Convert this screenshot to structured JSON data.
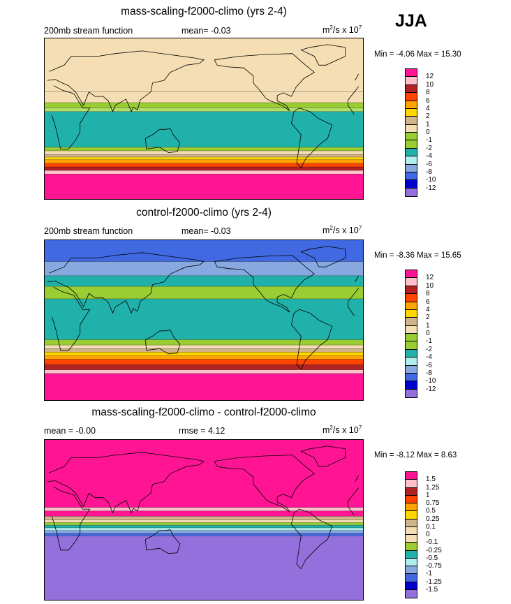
{
  "season": "JJA",
  "chart_data": [
    {
      "type": "heatmap",
      "title": "mass-scaling-f2000-climo (yrs 2-4)",
      "left_label": "200mb stream function",
      "center_label": "mean=  -0.03",
      "units_base": "m",
      "units_sup": "2",
      "units_mid": "/s x 10",
      "units_exp": "7",
      "minmax": "Min =  -4.06 Max =  15.30",
      "colorbar_levels": [
        "12",
        "10",
        "8",
        "6",
        "4",
        "2",
        "1",
        "0",
        "-1",
        "-2",
        "-4",
        "-6",
        "-8",
        "-10",
        "-12"
      ],
      "colorbar_colors": [
        "#ff1493",
        "#ffc0cb",
        "#b22222",
        "#ff4500",
        "#ffa500",
        "#ffd700",
        "#d2b48c",
        "#f5deb3",
        "#9acd32",
        "#9acd32",
        "#20b2aa",
        "#afeeee",
        "#87a9e0",
        "#4169e1",
        "#0000cd",
        "#9370db"
      ],
      "bands": [
        {
          "lat_top": 90,
          "lat_bot": 30,
          "value": 1,
          "color": "#f5deb3"
        },
        {
          "lat_top": 30,
          "lat_bot": 18,
          "value": 0,
          "color": "#f5deb3"
        },
        {
          "lat_top": 18,
          "lat_bot": 12,
          "value": -1,
          "color": "#9acd32"
        },
        {
          "lat_top": 12,
          "lat_bot": 8,
          "value": -2,
          "color": "#afe06a"
        },
        {
          "lat_top": 8,
          "lat_bot": -32,
          "value": -4,
          "color": "#20b2aa"
        },
        {
          "lat_top": -32,
          "lat_bot": -36,
          "value": -2,
          "color": "#9acd32"
        },
        {
          "lat_top": -36,
          "lat_bot": -40,
          "value": 0,
          "color": "#f5deb3"
        },
        {
          "lat_top": -40,
          "lat_bot": -43,
          "value": 2,
          "color": "#d2b48c"
        },
        {
          "lat_top": -43,
          "lat_bot": -46,
          "value": 4,
          "color": "#ffd700"
        },
        {
          "lat_top": -46,
          "lat_bot": -50,
          "value": 6,
          "color": "#ffa500"
        },
        {
          "lat_top": -50,
          "lat_bot": -54,
          "value": 8,
          "color": "#ff4500"
        },
        {
          "lat_top": -54,
          "lat_bot": -58,
          "value": 10,
          "color": "#b22222"
        },
        {
          "lat_top": -58,
          "lat_bot": -62,
          "value": 12,
          "color": "#ffc0cb"
        },
        {
          "lat_top": -62,
          "lat_bot": -90,
          "value": 15,
          "color": "#ff1493"
        }
      ]
    },
    {
      "type": "heatmap",
      "title": "control-f2000-climo (yrs 2-4)",
      "left_label": "200mb stream function",
      "center_label": "mean=  -0.03",
      "units_base": "m",
      "units_sup": "2",
      "units_mid": "/s x 10",
      "units_exp": "7",
      "minmax": "Min =  -8.36 Max =  15.65",
      "colorbar_levels": [
        "12",
        "10",
        "8",
        "6",
        "4",
        "2",
        "1",
        "0",
        "-1",
        "-2",
        "-4",
        "-6",
        "-8",
        "-10",
        "-12"
      ],
      "colorbar_colors": [
        "#ff1493",
        "#ffc0cb",
        "#b22222",
        "#ff4500",
        "#ffa500",
        "#ffd700",
        "#d2b48c",
        "#f5deb3",
        "#9acd32",
        "#9acd32",
        "#20b2aa",
        "#afeeee",
        "#87a9e0",
        "#4169e1",
        "#0000cd",
        "#9370db"
      ],
      "bands": [
        {
          "lat_top": 90,
          "lat_bot": 66,
          "value": -8,
          "color": "#4169e1"
        },
        {
          "lat_top": 66,
          "lat_bot": 50,
          "value": -6,
          "color": "#87a9e0"
        },
        {
          "lat_top": 50,
          "lat_bot": 38,
          "value": -4,
          "color": "#20b2aa"
        },
        {
          "lat_top": 38,
          "lat_bot": 24,
          "value": -2,
          "color": "#9acd32"
        },
        {
          "lat_top": 24,
          "lat_bot": -22,
          "value": -4,
          "color": "#20b2aa"
        },
        {
          "lat_top": -22,
          "lat_bot": -28,
          "value": -2,
          "color": "#9acd32"
        },
        {
          "lat_top": -28,
          "lat_bot": -32,
          "value": 0,
          "color": "#f5deb3"
        },
        {
          "lat_top": -32,
          "lat_bot": -36,
          "value": 2,
          "color": "#d2b48c"
        },
        {
          "lat_top": -36,
          "lat_bot": -40,
          "value": 4,
          "color": "#ffd700"
        },
        {
          "lat_top": -40,
          "lat_bot": -44,
          "value": 6,
          "color": "#ffa500"
        },
        {
          "lat_top": -44,
          "lat_bot": -50,
          "value": 8,
          "color": "#ff4500"
        },
        {
          "lat_top": -50,
          "lat_bot": -56,
          "value": 10,
          "color": "#b22222"
        },
        {
          "lat_top": -56,
          "lat_bot": -60,
          "value": 12,
          "color": "#ffc0cb"
        },
        {
          "lat_top": -60,
          "lat_bot": -90,
          "value": 15,
          "color": "#ff1493"
        }
      ]
    },
    {
      "type": "heatmap",
      "title": "mass-scaling-f2000-climo - control-f2000-climo",
      "left_label": "mean =  -0.00",
      "center_label": "rmse =   4.12",
      "units_base": "m",
      "units_sup": "2",
      "units_mid": "/s x 10",
      "units_exp": "7",
      "minmax": "Min =  -8.12 Max =   8.63",
      "colorbar_levels": [
        "1.5",
        "1.25",
        "1",
        "0.75",
        "0.5",
        "0.25",
        "0.1",
        "0",
        "-0.1",
        "-0.25",
        "-0.5",
        "-0.75",
        "-1",
        "-1.25",
        "-1.5"
      ],
      "colorbar_colors": [
        "#ff1493",
        "#ffc0cb",
        "#b22222",
        "#ff4500",
        "#ffa500",
        "#ffd700",
        "#d2b48c",
        "#f5deb3",
        "#f5deb3",
        "#9acd32",
        "#20b2aa",
        "#afeeee",
        "#87a9e0",
        "#4169e1",
        "#0000cd",
        "#9370db"
      ],
      "bands": [
        {
          "lat_top": 90,
          "lat_bot": 14,
          "value": 1.5,
          "color": "#ff1493"
        },
        {
          "lat_top": 14,
          "lat_bot": 10,
          "value": 1.25,
          "color": "#ffc0cb"
        },
        {
          "lat_top": 10,
          "lat_bot": 4,
          "value": 1.5,
          "color": "#ff1493"
        },
        {
          "lat_top": 4,
          "lat_bot": 0,
          "value": 0.1,
          "color": "#d2b48c"
        },
        {
          "lat_top": 0,
          "lat_bot": -3,
          "value": 0,
          "color": "#f5deb3"
        },
        {
          "lat_top": -3,
          "lat_bot": -6,
          "value": -0.25,
          "color": "#9acd32"
        },
        {
          "lat_top": -6,
          "lat_bot": -9,
          "value": -0.5,
          "color": "#20b2aa"
        },
        {
          "lat_top": -9,
          "lat_bot": -12,
          "value": -0.75,
          "color": "#afeeee"
        },
        {
          "lat_top": -12,
          "lat_bot": -15,
          "value": -1,
          "color": "#87a9e0"
        },
        {
          "lat_top": -15,
          "lat_bot": -18,
          "value": -1.25,
          "color": "#4169e1"
        },
        {
          "lat_top": -18,
          "lat_bot": -90,
          "value": -1.5,
          "color": "#9370db"
        }
      ]
    }
  ]
}
